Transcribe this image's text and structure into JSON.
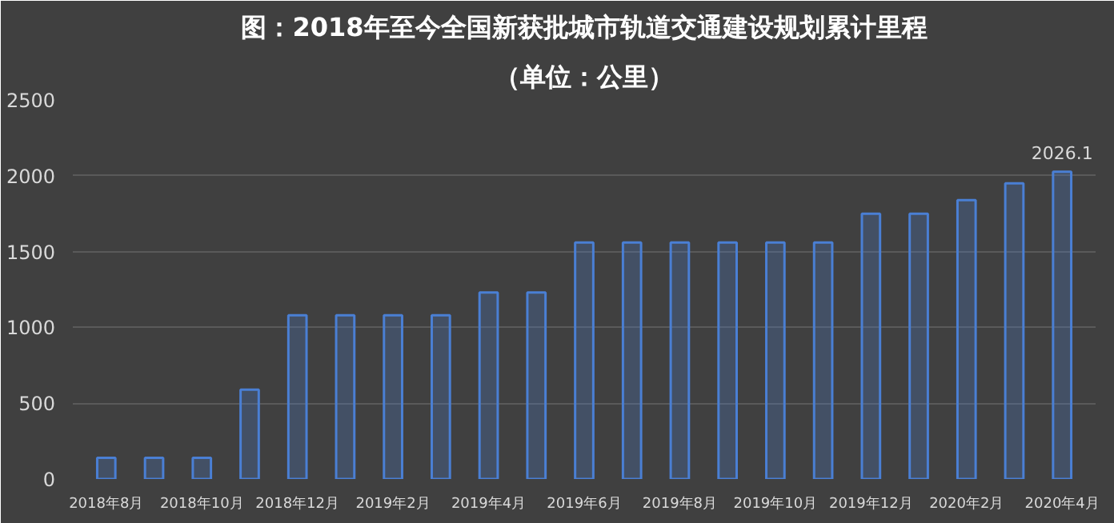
{
  "chart_data": {
    "type": "bar",
    "title": "图：2018年至今全国新获批城市轨道交通建设规划累计里程",
    "subtitle": "（单位：公里）",
    "categories": [
      "2018年8月",
      null,
      "2018年10月",
      null,
      "2018年12月",
      null,
      "2019年2月",
      null,
      "2019年4月",
      null,
      "2019年6月",
      null,
      "2019年8月",
      null,
      "2019年10月",
      null,
      "2019年12月",
      null,
      "2020年2月",
      null,
      "2020年4月"
    ],
    "values": [
      140,
      140,
      140,
      590,
      1080,
      1080,
      1080,
      1080,
      1230,
      1230,
      1560,
      1560,
      1560,
      1560,
      1560,
      1560,
      1750,
      1750,
      1840,
      1950,
      2026.1
    ],
    "value_labels": [
      null,
      null,
      null,
      null,
      null,
      null,
      null,
      null,
      null,
      null,
      null,
      null,
      null,
      null,
      null,
      null,
      null,
      null,
      null,
      null,
      "2026.1"
    ],
    "color": "#4a7fd4",
    "ylim": [
      0,
      2500
    ],
    "yticks": [
      0,
      500,
      1000,
      1500,
      2000,
      2500
    ],
    "grid": "y"
  }
}
